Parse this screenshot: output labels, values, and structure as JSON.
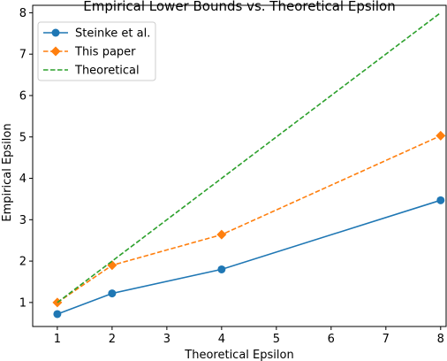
{
  "chart_data": {
    "type": "line",
    "title": "Empirical Lower Bounds vs. Theoretical Epsilon",
    "xlabel": "Theoretical Epsilon",
    "ylabel": "Empirical Epsilon",
    "xlim": [
      0.55,
      8.1
    ],
    "ylim": [
      0.42,
      8.18
    ],
    "xticks": [
      1,
      2,
      3,
      4,
      5,
      6,
      7,
      8
    ],
    "yticks": [
      1,
      2,
      3,
      4,
      5,
      6,
      7,
      8
    ],
    "grid": false,
    "legend_position": "top-left",
    "series": [
      {
        "name": "Steinke et al.",
        "x": [
          1,
          2,
          4,
          8
        ],
        "y": [
          0.72,
          1.22,
          1.8,
          3.47
        ],
        "color": "#1f77b4",
        "linestyle": "solid",
        "marker": "circle"
      },
      {
        "name": "This paper",
        "x": [
          1,
          2,
          4,
          8
        ],
        "y": [
          1.0,
          1.9,
          2.64,
          5.03
        ],
        "color": "#ff7f0e",
        "linestyle": "dashed",
        "marker": "diamond"
      },
      {
        "name": "Theoretical",
        "x": [
          1,
          8
        ],
        "y": [
          1,
          8
        ],
        "color": "#2ca02c",
        "linestyle": "dashed",
        "marker": "none"
      }
    ]
  }
}
